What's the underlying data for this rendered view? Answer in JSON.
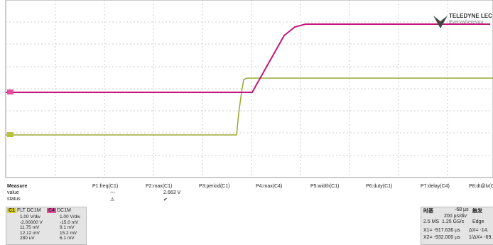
{
  "logo": {
    "brand": "TELEDYNE LEC",
    "tagline": "Everywhereyou"
  },
  "measure": {
    "headers": [
      "Measure",
      "P1:freq(C1)",
      "P2:max(C1)",
      "P3:period(C1)",
      "P4:max(C4)",
      "P5:width(C1)",
      "P6:duty(C1)",
      "P7:delay(C4)",
      "P8:dt@lv(C"
    ],
    "value_row": {
      "label": "value",
      "p1": "---",
      "p2": "2.663 V"
    },
    "status_row": {
      "label": "status",
      "p1": "⚠",
      "p2": "✔"
    }
  },
  "channels": [
    {
      "label": "C1",
      "coupling": "FLT DC1M",
      "lines": [
        "1.00 V/div",
        "-2.00000 V",
        "11.75 mV",
        "12.12 mV",
        "280 uV"
      ]
    },
    {
      "label": "C4",
      "coupling": "DC1M",
      "lines": [
        "1.00 V/div",
        "-15.0 mV",
        "9.1 mV",
        "15.2 mV",
        "6.1 mV"
      ]
    }
  ],
  "timebase": {
    "title": "时基",
    "delay": "-68 µs",
    "trigger_title": "触发",
    "scale": "200 µs/div",
    "samples": "2.5 MS",
    "rate": "1.25 GS/s",
    "trigger_type": "Edge",
    "cursors": [
      "X1= -917.636 µs",
      "ΔX= -14.",
      "X2= -932.000 µs",
      "1/ΔX= -69."
    ]
  }
}
